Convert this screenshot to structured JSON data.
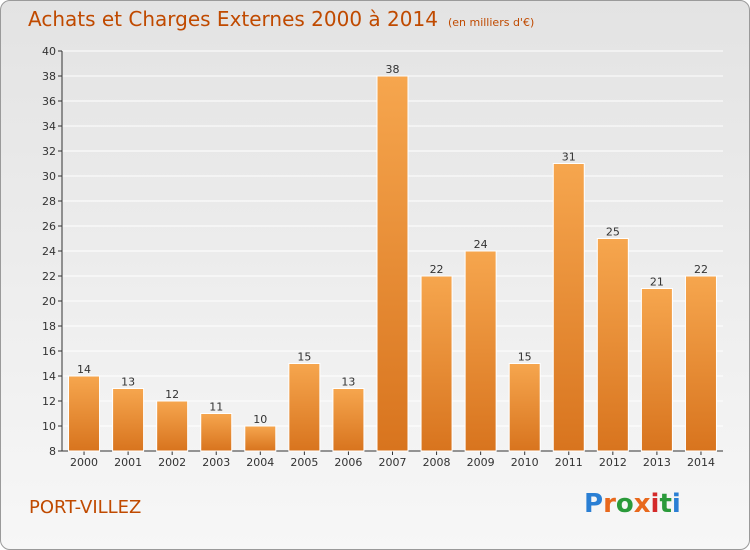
{
  "header": {
    "title": "Achats et Charges Externes 2000 à 2014",
    "subtitle": "(en milliers d'€)"
  },
  "footer": {
    "town": "PORT-VILLEZ",
    "logo": "Proxiti",
    "logo_colors": [
      "#2a7fd4",
      "#e8681c",
      "#2a9a3a",
      "#e8681c",
      "#d42a2a",
      "#2a9a3a",
      "#2a7fd4"
    ]
  },
  "colors": {
    "bar_light": "#f6a64e",
    "bar_dark": "#d8741e",
    "title": "#c04a00",
    "axis": "#333333",
    "grid": "#ffffff"
  },
  "chart_data": {
    "type": "bar",
    "categories": [
      "2000",
      "2001",
      "2002",
      "2003",
      "2004",
      "2005",
      "2006",
      "2007",
      "2008",
      "2009",
      "2010",
      "2011",
      "2012",
      "2013",
      "2014"
    ],
    "values": [
      14,
      13,
      12,
      11,
      10,
      15,
      13,
      38,
      22,
      24,
      15,
      31,
      25,
      21,
      22
    ],
    "data_labels": [
      "14",
      "13",
      "12",
      "11",
      "10",
      "15",
      "13",
      "38",
      "22",
      "24",
      "15",
      "31",
      "25",
      "21",
      "22"
    ],
    "title": "Achats et Charges Externes 2000 à 2014",
    "xlabel": "",
    "ylabel": "",
    "ylim": [
      8,
      40
    ],
    "yticks": [
      8,
      10,
      12,
      14,
      16,
      18,
      20,
      22,
      24,
      26,
      28,
      30,
      32,
      34,
      36,
      38,
      40
    ],
    "grid": true
  }
}
